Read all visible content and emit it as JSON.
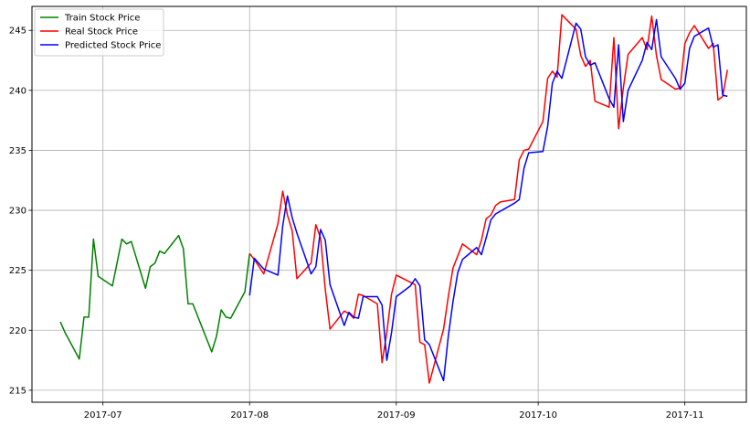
{
  "chart_data": {
    "type": "line",
    "title": "",
    "xlabel": "",
    "ylabel": "",
    "grid": true,
    "legend_position": "top-left",
    "xlim": [
      "2017-06-16",
      "2017-11-14"
    ],
    "ylim": [
      214,
      247
    ],
    "x_ticks": [
      {
        "date": "2017-07-01",
        "label": "2017-07"
      },
      {
        "date": "2017-08-01",
        "label": "2017-08"
      },
      {
        "date": "2017-09-01",
        "label": "2017-09"
      },
      {
        "date": "2017-10-01",
        "label": "2017-10"
      },
      {
        "date": "2017-11-01",
        "label": "2017-11"
      }
    ],
    "y_ticks": [
      215,
      220,
      225,
      230,
      235,
      240,
      245
    ],
    "series": [
      {
        "name": "Train Stock Price",
        "color": "#008000",
        "points": [
          [
            "2017-06-22",
            220.7
          ],
          [
            "2017-06-23",
            219.8
          ],
          [
            "2017-06-26",
            217.6
          ],
          [
            "2017-06-27",
            221.1
          ],
          [
            "2017-06-28",
            221.1
          ],
          [
            "2017-06-29",
            227.6
          ],
          [
            "2017-06-30",
            224.5
          ],
          [
            "2017-07-03",
            223.7
          ],
          [
            "2017-07-05",
            227.6
          ],
          [
            "2017-07-06",
            227.2
          ],
          [
            "2017-07-07",
            227.4
          ],
          [
            "2017-07-10",
            223.5
          ],
          [
            "2017-07-11",
            225.3
          ],
          [
            "2017-07-12",
            225.6
          ],
          [
            "2017-07-13",
            226.6
          ],
          [
            "2017-07-14",
            226.4
          ],
          [
            "2017-07-17",
            227.9
          ],
          [
            "2017-07-18",
            226.8
          ],
          [
            "2017-07-19",
            222.2
          ],
          [
            "2017-07-20",
            222.2
          ],
          [
            "2017-07-24",
            218.2
          ],
          [
            "2017-07-25",
            219.5
          ],
          [
            "2017-07-26",
            221.7
          ],
          [
            "2017-07-27",
            221.1
          ],
          [
            "2017-07-28",
            221.0
          ],
          [
            "2017-07-31",
            223.2
          ],
          [
            "2017-08-01",
            226.4
          ]
        ]
      },
      {
        "name": "Real Stock Price",
        "color": "#ff0000",
        "points": [
          [
            "2017-08-01",
            226.4
          ],
          [
            "2017-08-02",
            225.9
          ],
          [
            "2017-08-04",
            224.7
          ],
          [
            "2017-08-07",
            228.9
          ],
          [
            "2017-08-08",
            231.6
          ],
          [
            "2017-08-09",
            229.6
          ],
          [
            "2017-08-10",
            228.3
          ],
          [
            "2017-08-11",
            224.3
          ],
          [
            "2017-08-14",
            225.6
          ],
          [
            "2017-08-15",
            228.8
          ],
          [
            "2017-08-16",
            227.7
          ],
          [
            "2017-08-17",
            223.4
          ],
          [
            "2017-08-18",
            220.1
          ],
          [
            "2017-08-21",
            221.6
          ],
          [
            "2017-08-22",
            221.4
          ],
          [
            "2017-08-23",
            221.0
          ],
          [
            "2017-08-24",
            223.0
          ],
          [
            "2017-08-25",
            222.9
          ],
          [
            "2017-08-28",
            222.2
          ],
          [
            "2017-08-29",
            217.3
          ],
          [
            "2017-08-30",
            219.8
          ],
          [
            "2017-08-31",
            223.0
          ],
          [
            "2017-09-01",
            224.6
          ],
          [
            "2017-09-04",
            224.0
          ],
          [
            "2017-09-05",
            223.8
          ],
          [
            "2017-09-06",
            219.0
          ],
          [
            "2017-09-07",
            218.8
          ],
          [
            "2017-09-08",
            215.6
          ],
          [
            "2017-09-11",
            220.1
          ],
          [
            "2017-09-12",
            222.8
          ],
          [
            "2017-09-13",
            225.2
          ],
          [
            "2017-09-15",
            227.2
          ],
          [
            "2017-09-18",
            226.3
          ],
          [
            "2017-09-19",
            227.5
          ],
          [
            "2017-09-20",
            229.3
          ],
          [
            "2017-09-21",
            229.6
          ],
          [
            "2017-09-22",
            230.4
          ],
          [
            "2017-09-23",
            230.7
          ],
          [
            "2017-09-26",
            230.9
          ],
          [
            "2017-09-27",
            234.2
          ],
          [
            "2017-09-28",
            235.0
          ],
          [
            "2017-09-29",
            235.1
          ],
          [
            "2017-10-02",
            237.4
          ],
          [
            "2017-10-03",
            241.0
          ],
          [
            "2017-10-04",
            241.6
          ],
          [
            "2017-10-05",
            241.1
          ],
          [
            "2017-10-06",
            246.3
          ],
          [
            "2017-10-09",
            245.1
          ],
          [
            "2017-10-10",
            242.9
          ],
          [
            "2017-10-11",
            242.0
          ],
          [
            "2017-10-12",
            242.5
          ],
          [
            "2017-10-13",
            239.1
          ],
          [
            "2017-10-16",
            238.6
          ],
          [
            "2017-10-17",
            244.4
          ],
          [
            "2017-10-18",
            236.8
          ],
          [
            "2017-10-19",
            240.2
          ],
          [
            "2017-10-20",
            243.0
          ],
          [
            "2017-10-23",
            244.4
          ],
          [
            "2017-10-24",
            243.4
          ],
          [
            "2017-10-25",
            246.2
          ],
          [
            "2017-10-26",
            242.9
          ],
          [
            "2017-10-27",
            240.9
          ],
          [
            "2017-10-30",
            240.1
          ],
          [
            "2017-10-31",
            240.2
          ],
          [
            "2017-11-01",
            243.9
          ],
          [
            "2017-11-02",
            244.8
          ],
          [
            "2017-11-03",
            245.4
          ],
          [
            "2017-11-06",
            243.5
          ],
          [
            "2017-11-07",
            243.9
          ],
          [
            "2017-11-08",
            239.2
          ],
          [
            "2017-11-09",
            239.5
          ],
          [
            "2017-11-10",
            241.7
          ]
        ]
      },
      {
        "name": "Predicted Stock Price",
        "color": "#0000ff",
        "points": [
          [
            "2017-08-01",
            222.9
          ],
          [
            "2017-08-02",
            226.0
          ],
          [
            "2017-08-04",
            225.1
          ],
          [
            "2017-08-07",
            224.6
          ],
          [
            "2017-08-08",
            228.7
          ],
          [
            "2017-08-09",
            231.2
          ],
          [
            "2017-08-10",
            229.4
          ],
          [
            "2017-08-11",
            228.1
          ],
          [
            "2017-08-14",
            224.7
          ],
          [
            "2017-08-15",
            225.3
          ],
          [
            "2017-08-16",
            228.4
          ],
          [
            "2017-08-17",
            227.5
          ],
          [
            "2017-08-18",
            223.8
          ],
          [
            "2017-08-21",
            220.4
          ],
          [
            "2017-08-22",
            221.5
          ],
          [
            "2017-08-23",
            221.1
          ],
          [
            "2017-08-24",
            221.0
          ],
          [
            "2017-08-25",
            222.8
          ],
          [
            "2017-08-28",
            222.8
          ],
          [
            "2017-08-29",
            222.1
          ],
          [
            "2017-08-30",
            217.5
          ],
          [
            "2017-08-31",
            219.8
          ],
          [
            "2017-09-01",
            222.8
          ],
          [
            "2017-09-04",
            223.7
          ],
          [
            "2017-09-05",
            224.3
          ],
          [
            "2017-09-06",
            223.7
          ],
          [
            "2017-09-07",
            219.2
          ],
          [
            "2017-09-08",
            218.8
          ],
          [
            "2017-09-11",
            215.8
          ],
          [
            "2017-09-12",
            219.5
          ],
          [
            "2017-09-13",
            222.4
          ],
          [
            "2017-09-14",
            224.8
          ],
          [
            "2017-09-15",
            225.9
          ],
          [
            "2017-09-18",
            226.9
          ],
          [
            "2017-09-19",
            226.3
          ],
          [
            "2017-09-20",
            227.7
          ],
          [
            "2017-09-21",
            229.2
          ],
          [
            "2017-09-22",
            229.7
          ],
          [
            "2017-09-26",
            230.6
          ],
          [
            "2017-09-27",
            230.9
          ],
          [
            "2017-09-28",
            233.5
          ],
          [
            "2017-09-29",
            234.8
          ],
          [
            "2017-10-02",
            234.9
          ],
          [
            "2017-10-03",
            237.0
          ],
          [
            "2017-10-04",
            240.6
          ],
          [
            "2017-10-05",
            241.6
          ],
          [
            "2017-10-06",
            241.0
          ],
          [
            "2017-10-09",
            245.6
          ],
          [
            "2017-10-10",
            245.1
          ],
          [
            "2017-10-11",
            242.8
          ],
          [
            "2017-10-12",
            242.1
          ],
          [
            "2017-10-13",
            242.3
          ],
          [
            "2017-10-16",
            239.3
          ],
          [
            "2017-10-17",
            238.6
          ],
          [
            "2017-10-18",
            243.8
          ],
          [
            "2017-10-19",
            237.4
          ],
          [
            "2017-10-20",
            240.0
          ],
          [
            "2017-10-23",
            242.5
          ],
          [
            "2017-10-24",
            244.0
          ],
          [
            "2017-10-25",
            243.4
          ],
          [
            "2017-10-26",
            245.9
          ],
          [
            "2017-10-27",
            242.8
          ],
          [
            "2017-10-30",
            241.0
          ],
          [
            "2017-10-31",
            240.1
          ],
          [
            "2017-11-01",
            240.6
          ],
          [
            "2017-11-02",
            243.5
          ],
          [
            "2017-11-03",
            244.5
          ],
          [
            "2017-11-06",
            245.2
          ],
          [
            "2017-11-07",
            243.6
          ],
          [
            "2017-11-08",
            243.8
          ],
          [
            "2017-11-09",
            239.6
          ],
          [
            "2017-11-10",
            239.5
          ]
        ]
      }
    ]
  }
}
